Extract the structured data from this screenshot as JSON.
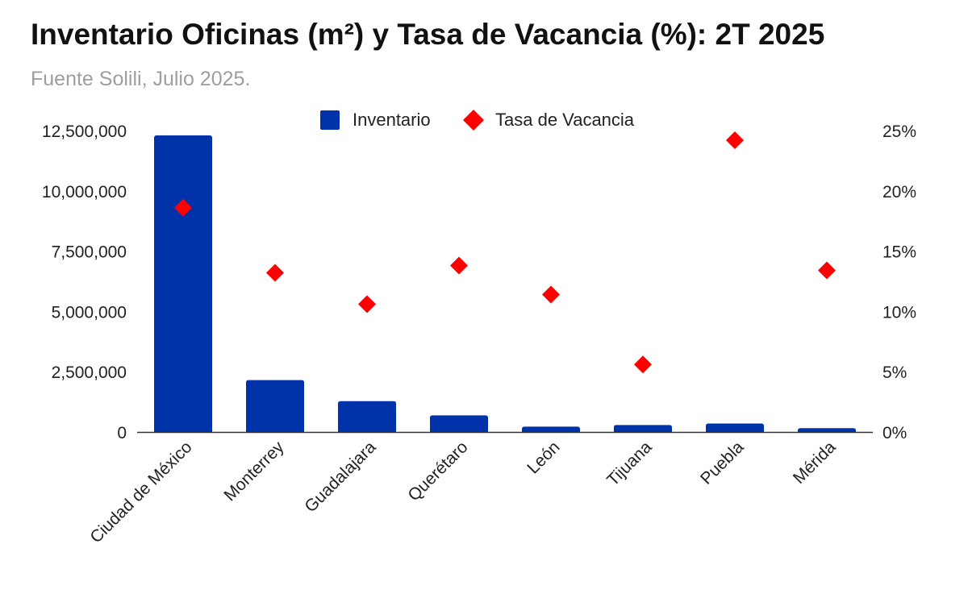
{
  "chart_data": {
    "type": "bar",
    "title": "Inventario Oficinas (m²) y Tasa de Vacancia (%): 2T 2025",
    "subtitle": "Fuente Solili, Julio 2025.",
    "categories": [
      "Ciudad de México",
      "Monterrey",
      "Guadalajara",
      "Querétaro",
      "León",
      "Tijuana",
      "Puebla",
      "Mérida"
    ],
    "series": [
      {
        "name": "Inventario",
        "type": "bar",
        "axis": "left",
        "color": "#0033aa",
        "values": [
          12300000,
          2150000,
          1280000,
          690000,
          220000,
          290000,
          350000,
          160000
        ]
      },
      {
        "name": "Tasa de Vacancia",
        "type": "scatter",
        "axis": "right",
        "marker": "diamond",
        "color": "#ff0000",
        "values": [
          18.6,
          13.2,
          10.6,
          13.8,
          11.4,
          5.6,
          24.2,
          13.4
        ]
      }
    ],
    "y_left": {
      "ylim": [
        0,
        12500000
      ],
      "ticks": [
        0,
        2500000,
        5000000,
        7500000,
        10000000,
        12500000
      ],
      "tick_labels": [
        "0",
        "2,500,000",
        "5,000,000",
        "7,500,000",
        "10,000,000",
        "12,500,000"
      ]
    },
    "y_right": {
      "ylim": [
        0,
        25
      ],
      "ticks": [
        0,
        5,
        10,
        15,
        20,
        25
      ],
      "tick_labels": [
        "0%",
        "5%",
        "10%",
        "15%",
        "20%",
        "25%"
      ]
    },
    "grid": false,
    "legend": "top-center"
  }
}
